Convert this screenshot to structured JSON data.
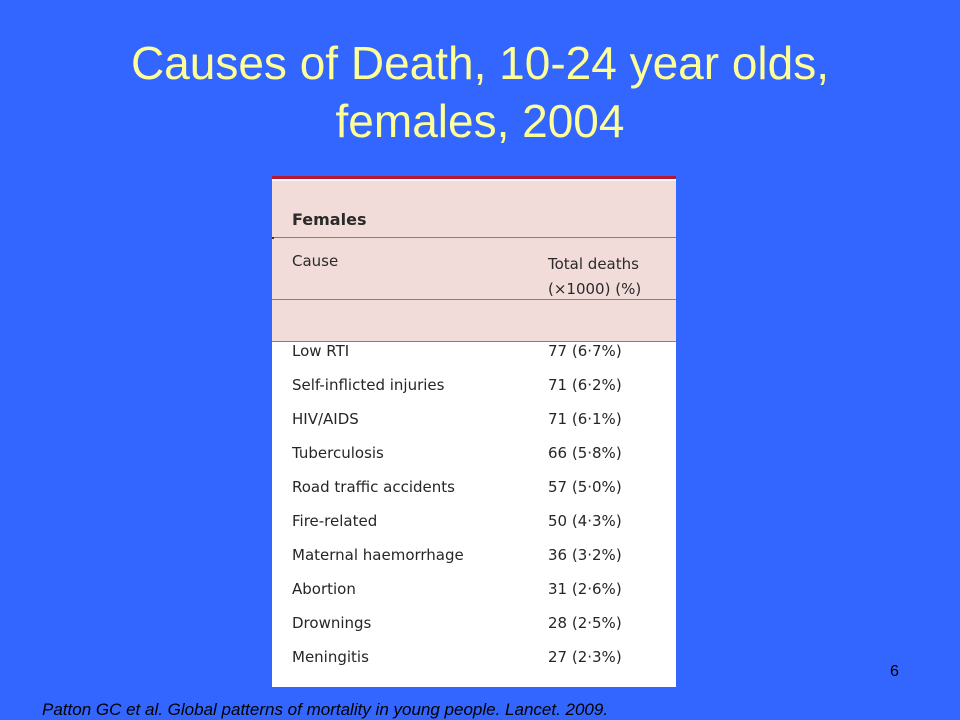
{
  "slide": {
    "title_line1": "Causes of Death, 10-24 year olds,",
    "title_line2": "females, 2004",
    "number": "6",
    "citation": "Patton GC et al. Global patterns of mortality in young people. Lancet. 2009."
  },
  "table": {
    "group_label": "Females",
    "columns": {
      "cause": "Cause",
      "deaths_line1": "Total deaths",
      "deaths_line2": "(×1000) (%)"
    },
    "rows": [
      {
        "cause": "Low RTI",
        "deaths": "77 (6·7%)"
      },
      {
        "cause": "Self-inflicted injuries",
        "deaths": "71 (6·2%)"
      },
      {
        "cause": "HIV/AIDS",
        "deaths": "71 (6·1%)"
      },
      {
        "cause": "Tuberculosis",
        "deaths": "66 (5·8%)"
      },
      {
        "cause": "Road traffic accidents",
        "deaths": "57 (5·0%)"
      },
      {
        "cause": "Fire-related",
        "deaths": "50 (4·3%)"
      },
      {
        "cause": "Maternal haemorrhage",
        "deaths": "36 (3·2%)"
      },
      {
        "cause": "Abortion",
        "deaths": "31 (2·6%)"
      },
      {
        "cause": "Drownings",
        "deaths": "28 (2·5%)"
      },
      {
        "cause": "Meningitis",
        "deaths": "27 (2·3%)"
      }
    ]
  },
  "colors": {
    "background": "#3366ff",
    "title": "#ffff99",
    "table_header": "#f1dcda",
    "table_rule": "#b81530"
  }
}
